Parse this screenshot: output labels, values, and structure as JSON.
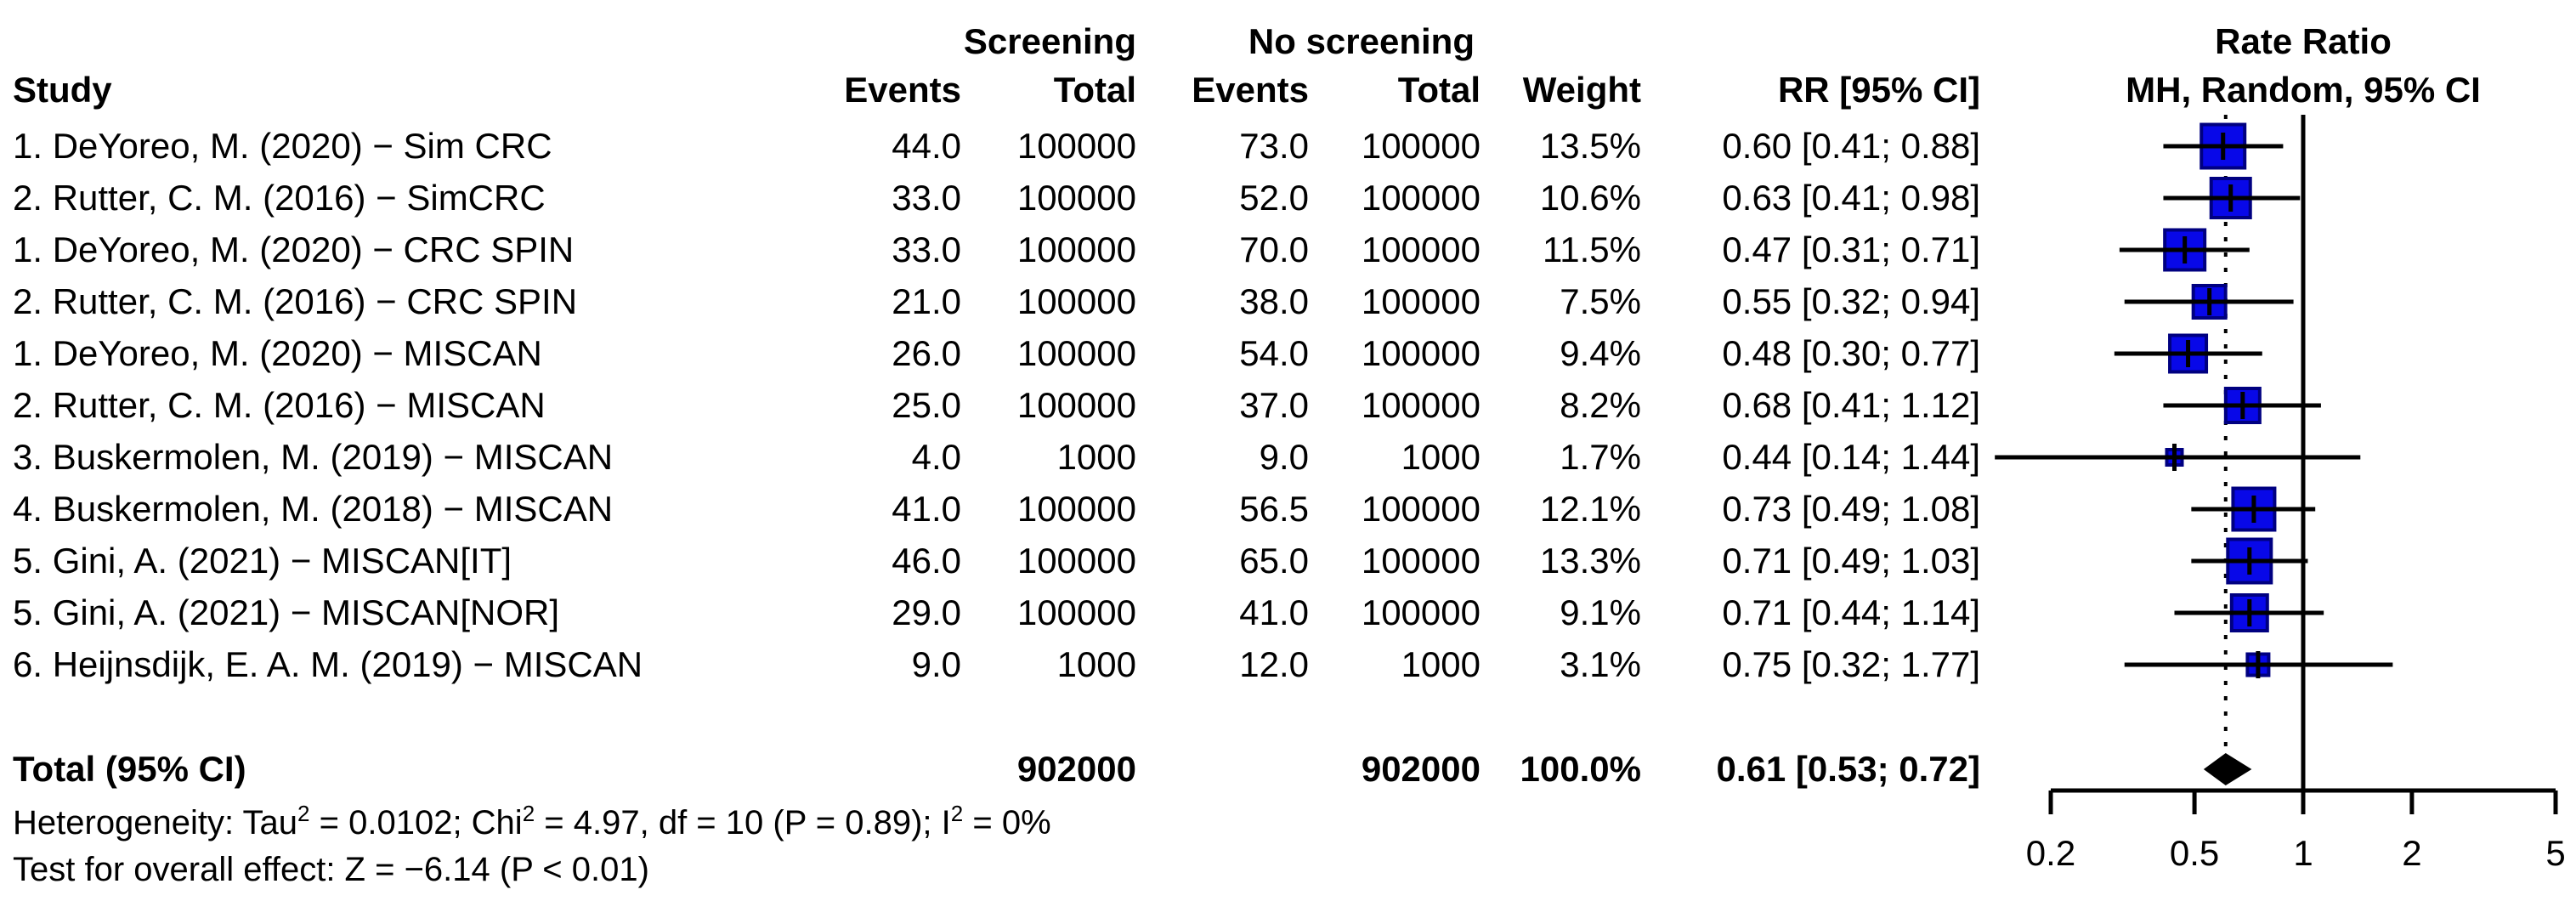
{
  "figure": {
    "background": "#ffffff",
    "text_color": "#000000"
  },
  "table": {
    "headers": {
      "study": "Study",
      "screening_group": "Screening",
      "no_screening_group": "No screening",
      "events_1": "Events",
      "total_1": "Total",
      "events_2": "Events",
      "total_2": "Total",
      "weight": "Weight",
      "rr_ci": "RR [95% CI]"
    },
    "total_row": {
      "label": "Total (95% CI)",
      "screening_total": "902000",
      "no_screening_total": "902000",
      "weight": "100.0%",
      "rr_ci": "0.61 [0.53; 0.72]"
    }
  },
  "plot_header": {
    "line1": "Rate Ratio",
    "line2": "MH, Random, 95% CI"
  },
  "footnotes": {
    "heterogeneity_parts": [
      {
        "text": "Heterogeneity: Tau",
        "sup": false
      },
      {
        "text": "2",
        "sup": true
      },
      {
        "text": " = 0.0102; Chi",
        "sup": false
      },
      {
        "text": "2",
        "sup": true
      },
      {
        "text": " = 4.97, df = 10 (P = 0.89); I",
        "sup": false
      },
      {
        "text": "2",
        "sup": true
      },
      {
        "text": " = 0%",
        "sup": false
      }
    ],
    "overall_effect": "Test for overall effect: Z = −6.14 (P < 0.01)"
  },
  "chart_data": {
    "type": "forest",
    "x_scale": "log",
    "xlim": [
      0.2,
      5
    ],
    "x_ticks": [
      0.2,
      0.5,
      1,
      2,
      5
    ],
    "x_tick_labels": [
      "0.2",
      "0.5",
      "1",
      "2",
      "5"
    ],
    "reference_line": 1,
    "pooled_dotted_line": 0.61,
    "marker_fill": "#0808E8",
    "marker_stroke": "#000080",
    "diamond_color": "#000000",
    "studies": [
      {
        "label": "1. DeYoreo, M. (2020) − Sim CRC",
        "screening_events": "44.0",
        "screening_total": "100000",
        "no_screening_events": "73.0",
        "no_screening_total": "100000",
        "weight_label": "13.5%",
        "weight_pct": 13.5,
        "rr": 0.6,
        "ci_low": 0.41,
        "ci_high": 0.88,
        "rr_ci": "0.60 [0.41; 0.88]"
      },
      {
        "label": "2. Rutter, C. M. (2016) − SimCRC",
        "screening_events": "33.0",
        "screening_total": "100000",
        "no_screening_events": "52.0",
        "no_screening_total": "100000",
        "weight_label": "10.6%",
        "weight_pct": 10.6,
        "rr": 0.63,
        "ci_low": 0.41,
        "ci_high": 0.98,
        "rr_ci": "0.63 [0.41; 0.98]"
      },
      {
        "label": "1. DeYoreo, M. (2020) − CRC SPIN",
        "screening_events": "33.0",
        "screening_total": "100000",
        "no_screening_events": "70.0",
        "no_screening_total": "100000",
        "weight_label": "11.5%",
        "weight_pct": 11.5,
        "rr": 0.47,
        "ci_low": 0.31,
        "ci_high": 0.71,
        "rr_ci": "0.47 [0.31; 0.71]"
      },
      {
        "label": "2. Rutter, C. M. (2016) − CRC SPIN",
        "screening_events": "21.0",
        "screening_total": "100000",
        "no_screening_events": "38.0",
        "no_screening_total": "100000",
        "weight_label": "7.5%",
        "weight_pct": 7.5,
        "rr": 0.55,
        "ci_low": 0.32,
        "ci_high": 0.94,
        "rr_ci": "0.55 [0.32; 0.94]"
      },
      {
        "label": "1. DeYoreo, M. (2020) − MISCAN",
        "screening_events": "26.0",
        "screening_total": "100000",
        "no_screening_events": "54.0",
        "no_screening_total": "100000",
        "weight_label": "9.4%",
        "weight_pct": 9.4,
        "rr": 0.48,
        "ci_low": 0.3,
        "ci_high": 0.77,
        "rr_ci": "0.48 [0.30; 0.77]"
      },
      {
        "label": "2. Rutter, C. M. (2016) − MISCAN",
        "screening_events": "25.0",
        "screening_total": "100000",
        "no_screening_events": "37.0",
        "no_screening_total": "100000",
        "weight_label": "8.2%",
        "weight_pct": 8.2,
        "rr": 0.68,
        "ci_low": 0.41,
        "ci_high": 1.12,
        "rr_ci": "0.68 [0.41; 1.12]"
      },
      {
        "label": "3. Buskermolen, M. (2019) − MISCAN",
        "screening_events": "4.0",
        "screening_total": "1000",
        "no_screening_events": "9.0",
        "no_screening_total": "1000",
        "weight_label": "1.7%",
        "weight_pct": 1.7,
        "rr": 0.44,
        "ci_low": 0.14,
        "ci_high": 1.44,
        "rr_ci": "0.44 [0.14; 1.44]"
      },
      {
        "label": "4. Buskermolen, M. (2018) − MISCAN",
        "screening_events": "41.0",
        "screening_total": "100000",
        "no_screening_events": "56.5",
        "no_screening_total": "100000",
        "weight_label": "12.1%",
        "weight_pct": 12.1,
        "rr": 0.73,
        "ci_low": 0.49,
        "ci_high": 1.08,
        "rr_ci": "0.73 [0.49; 1.08]"
      },
      {
        "label": "5. Gini, A. (2021) − MISCAN[IT]",
        "screening_events": "46.0",
        "screening_total": "100000",
        "no_screening_events": "65.0",
        "no_screening_total": "100000",
        "weight_label": "13.3%",
        "weight_pct": 13.3,
        "rr": 0.71,
        "ci_low": 0.49,
        "ci_high": 1.03,
        "rr_ci": "0.71 [0.49; 1.03]"
      },
      {
        "label": "5. Gini, A. (2021) − MISCAN[NOR]",
        "screening_events": "29.0",
        "screening_total": "100000",
        "no_screening_events": "41.0",
        "no_screening_total": "100000",
        "weight_label": "9.1%",
        "weight_pct": 9.1,
        "rr": 0.71,
        "ci_low": 0.44,
        "ci_high": 1.14,
        "rr_ci": "0.71 [0.44; 1.14]"
      },
      {
        "label": "6. Heijnsdijk, E. A. M. (2019) − MISCAN",
        "screening_events": "9.0",
        "screening_total": "1000",
        "no_screening_events": "12.0",
        "no_screening_total": "1000",
        "weight_label": "3.1%",
        "weight_pct": 3.1,
        "rr": 0.75,
        "ci_low": 0.32,
        "ci_high": 1.77,
        "rr_ci": "0.75 [0.32; 1.77]"
      }
    ],
    "pooled": {
      "rr": 0.61,
      "ci_low": 0.53,
      "ci_high": 0.72
    }
  }
}
